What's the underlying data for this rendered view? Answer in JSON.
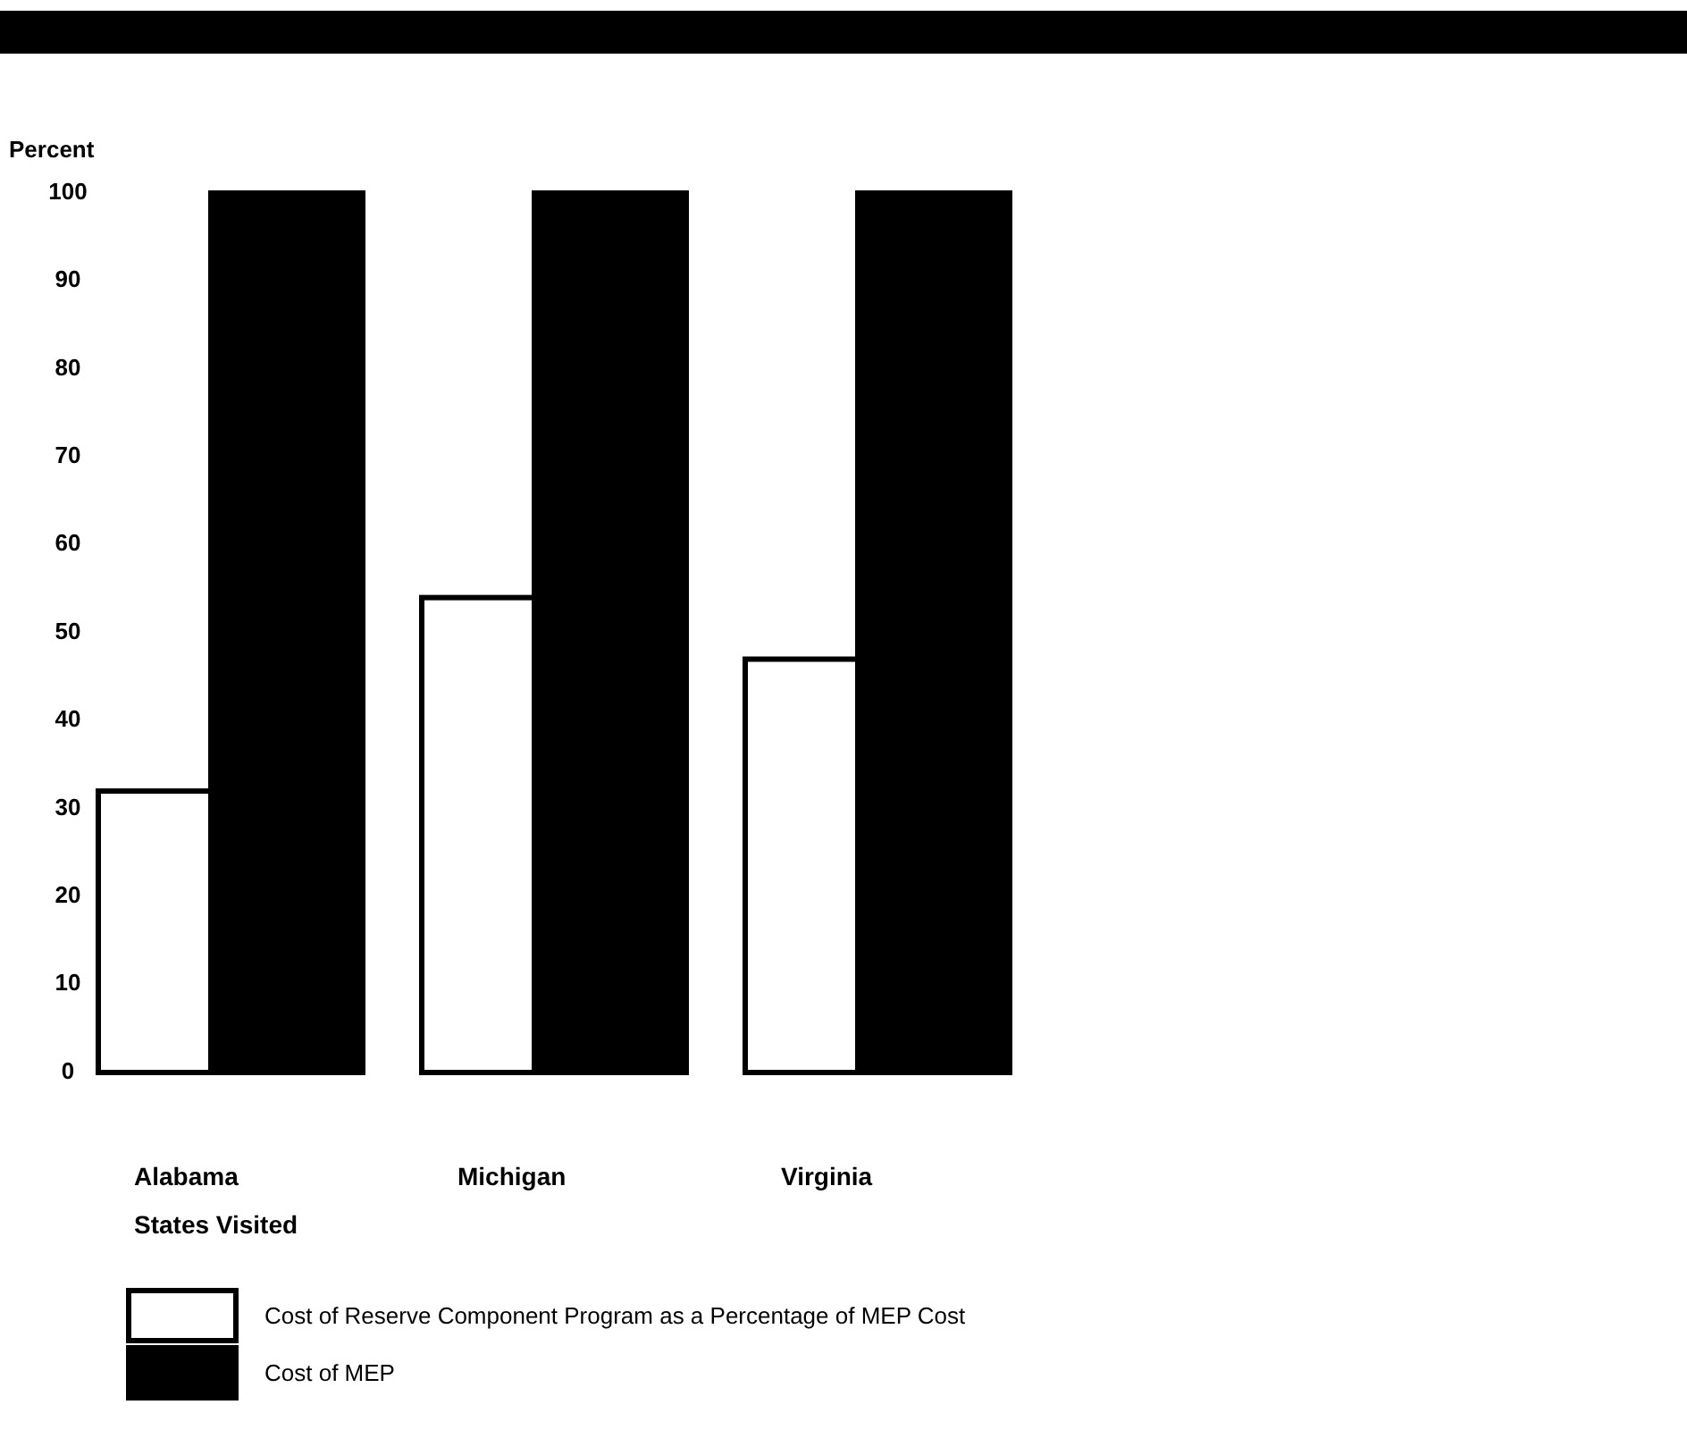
{
  "chart_data": {
    "type": "bar",
    "xlabel": "States Visited",
    "ylabel": "Percent",
    "categories": [
      "Alabama",
      "Michigan",
      "Virginia"
    ],
    "series": [
      {
        "name": "Cost of Reserve Component Program as a Percentage of MEP Cost",
        "color": "#ffffff",
        "values": [
          32,
          54,
          47
        ]
      },
      {
        "name": "Cost of MEP",
        "color": "#000000",
        "values": [
          100,
          100,
          100
        ]
      }
    ],
    "ylim": [
      0,
      100
    ],
    "yticks": [
      0,
      10,
      20,
      30,
      40,
      50,
      60,
      70,
      80,
      90,
      100
    ],
    "grid": false,
    "legend": "bottom"
  }
}
